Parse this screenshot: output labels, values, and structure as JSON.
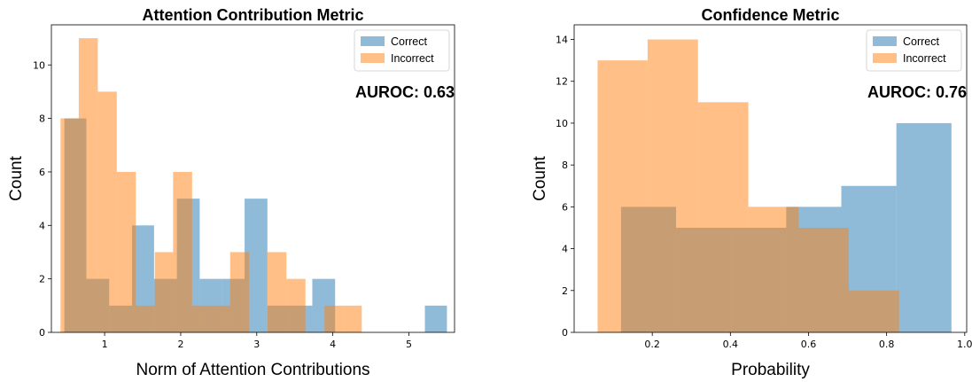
{
  "colors": {
    "correct": "#1f77b4",
    "incorrect": "#ff7f0e"
  },
  "chart_data": [
    {
      "type": "histogram",
      "title": "Attention Contribution Metric",
      "xlabel": "Norm of Attention Contributions",
      "ylabel": "Count",
      "xlim": [
        0.3,
        5.6
      ],
      "ylim": [
        0,
        11.5
      ],
      "xticks": [
        1,
        2,
        3,
        4,
        5
      ],
      "yticks": [
        0,
        2,
        4,
        6,
        8,
        10
      ],
      "annotation": "AUROC: 0.63",
      "legend": {
        "placement": "top-right",
        "entries": [
          "Correct",
          "Incorrect"
        ]
      },
      "series": [
        {
          "name": "Correct",
          "bins": [
            [
              0.47,
              0.76,
              8
            ],
            [
              0.76,
              1.06,
              2
            ],
            [
              1.06,
              1.36,
              1
            ],
            [
              1.36,
              1.65,
              4
            ],
            [
              1.65,
              1.95,
              2
            ],
            [
              1.95,
              2.25,
              5
            ],
            [
              2.25,
              2.54,
              2
            ],
            [
              2.54,
              2.84,
              2
            ],
            [
              2.84,
              3.14,
              5
            ],
            [
              3.14,
              3.43,
              1
            ],
            [
              3.43,
              3.73,
              1
            ],
            [
              3.73,
              4.03,
              2
            ],
            [
              4.03,
              4.32,
              0
            ],
            [
              4.32,
              4.62,
              0
            ],
            [
              4.62,
              4.92,
              0
            ],
            [
              4.92,
              5.21,
              0
            ],
            [
              5.21,
              5.5,
              1
            ]
          ]
        },
        {
          "name": "Incorrect",
          "bins": [
            [
              0.42,
              0.66,
              8
            ],
            [
              0.66,
              0.91,
              11
            ],
            [
              0.91,
              1.16,
              9
            ],
            [
              1.16,
              1.41,
              6
            ],
            [
              1.41,
              1.66,
              1
            ],
            [
              1.66,
              1.9,
              3
            ],
            [
              1.9,
              2.15,
              6
            ],
            [
              2.15,
              2.4,
              1
            ],
            [
              2.4,
              2.65,
              1
            ],
            [
              2.65,
              2.9,
              3
            ],
            [
              2.9,
              3.14,
              0
            ],
            [
              3.14,
              3.39,
              3
            ],
            [
              3.39,
              3.64,
              2
            ],
            [
              3.64,
              3.89,
              0
            ],
            [
              3.89,
              4.14,
              1
            ],
            [
              4.14,
              4.38,
              1
            ]
          ]
        }
      ]
    },
    {
      "type": "histogram",
      "title": "Confidence Metric",
      "xlabel": "Probability",
      "ylabel": "Count",
      "xlim": [
        0.0,
        1.005
      ],
      "ylim": [
        0,
        14.7
      ],
      "xticks": [
        0.2,
        0.4,
        0.6,
        0.8,
        1.0
      ],
      "xticklabels": [
        "0.2",
        "0.4",
        "0.6",
        "0.8",
        "1.0"
      ],
      "yticks": [
        0,
        2,
        4,
        6,
        8,
        10,
        12,
        14
      ],
      "annotation": "AUROC: 0.76",
      "legend": {
        "placement": "top-right",
        "entries": [
          "Correct",
          "Incorrect"
        ]
      },
      "series": [
        {
          "name": "Correct",
          "bins": [
            [
              0.12,
              0.261,
              6
            ],
            [
              0.261,
              0.402,
              5
            ],
            [
              0.402,
              0.543,
              5
            ],
            [
              0.543,
              0.684,
              6
            ],
            [
              0.684,
              0.825,
              7
            ],
            [
              0.825,
              0.966,
              10
            ]
          ]
        },
        {
          "name": "Incorrect",
          "bins": [
            [
              0.06,
              0.188,
              13
            ],
            [
              0.188,
              0.317,
              14
            ],
            [
              0.317,
              0.446,
              11
            ],
            [
              0.446,
              0.575,
              6
            ],
            [
              0.575,
              0.703,
              5
            ],
            [
              0.703,
              0.832,
              2
            ]
          ]
        }
      ]
    }
  ]
}
